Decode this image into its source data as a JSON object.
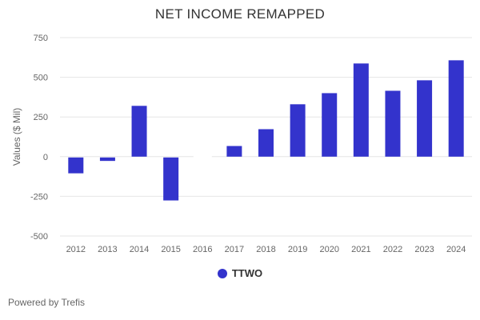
{
  "chart_data": {
    "type": "bar",
    "title": "NET INCOME REMAPPED",
    "xlabel": "",
    "ylabel": "Values ($ Mil)",
    "categories": [
      "2012",
      "2013",
      "2014",
      "2015",
      "2016",
      "2017",
      "2018",
      "2019",
      "2020",
      "2021",
      "2022",
      "2023",
      "2024"
    ],
    "series": [
      {
        "name": "TTWO",
        "color": "#3333cc",
        "values": [
          -105,
          -27,
          320,
          -276,
          null,
          67,
          173,
          330,
          400,
          587,
          415,
          481,
          607
        ]
      }
    ],
    "ylim": [
      -500,
      750
    ],
    "yticks": [
      -500,
      -250,
      0,
      250,
      500,
      750
    ],
    "grid": true,
    "legend": "bottom"
  },
  "footer": "Powered by Trefis"
}
